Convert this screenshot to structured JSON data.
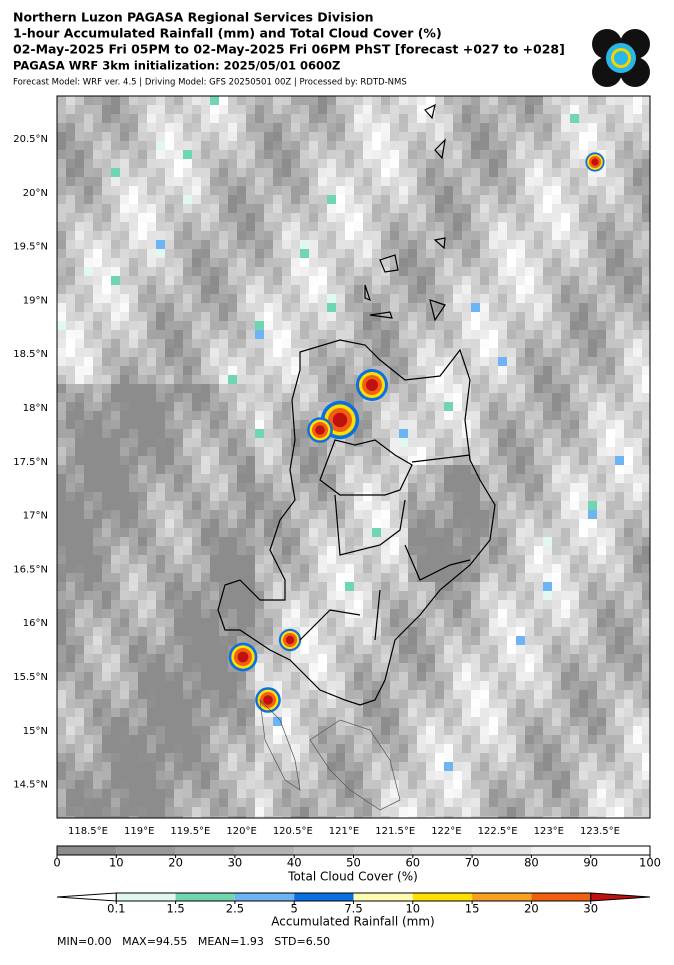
{
  "header": {
    "title": "Northern Luzon PAGASA Regional Services Division",
    "subtitle": "1-hour Accumulated Rainfall (mm) and Total Cloud Cover (%)",
    "period": "02-May-2025 Fri 05PM to 02-May-2025 Fri 06PM PhST [forecast +027 to +028]",
    "initialization": "PAGASA WRF 3km initialization: 2025/05/01 0600Z",
    "model_info": "Forecast Model: WRF ver. 4.5 | Driving Model: GFS 20250501 00Z | Processed by: RDTD-NMS"
  },
  "map": {
    "lat_labels": [
      "20.5°N",
      "20°N",
      "19.5°N",
      "19°N",
      "18.5°N",
      "18°N",
      "17.5°N",
      "17°N",
      "16.5°N",
      "16°N",
      "15.5°N",
      "15°N",
      "14.5°N"
    ],
    "lon_labels": [
      "118.5°E",
      "119°E",
      "119.5°E",
      "120°E",
      "120.5°E",
      "121°E",
      "121.5°E",
      "122°E",
      "122.5°E",
      "123°E",
      "123.5°E"
    ]
  },
  "cloud_colorbar": {
    "label": "Total Cloud Cover (%)",
    "ticks": [
      0,
      10,
      20,
      30,
      40,
      50,
      60,
      70,
      80,
      90,
      100
    ]
  },
  "rain_colorbar": {
    "label": "Accumulated Rainfall (mm)",
    "ticks": [
      0.1,
      1.5,
      2.5,
      5,
      7.5,
      10,
      15,
      20,
      30
    ],
    "colors": [
      "#ffffff",
      "#e0f8ee",
      "#6fd6b0",
      "#6cb4f4",
      "#0a6fe0",
      "#fffcb0",
      "#ffe000",
      "#f8a020",
      "#f06010",
      "#c01010"
    ]
  },
  "stats": "MIN=0.00   MAX=94.55   MEAN=1.93   STD=6.50"
}
